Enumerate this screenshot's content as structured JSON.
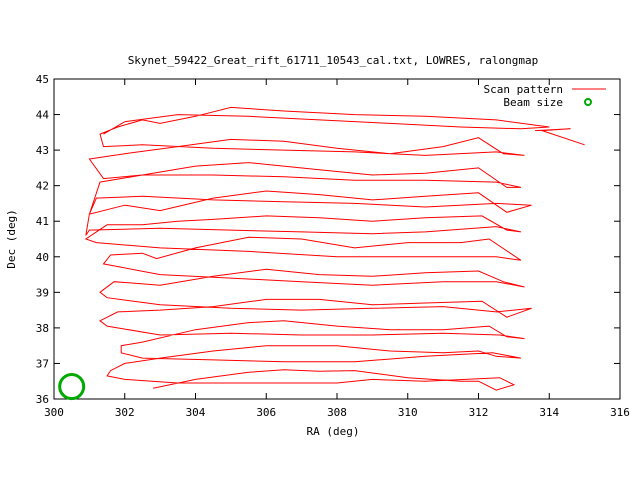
{
  "chart_data": {
    "type": "line",
    "title": "Skynet_59422_Great_rift_61711_10543_cal.txt, LOWRES, ralongmap",
    "xlabel": "RA (deg)",
    "ylabel": "Dec (deg)",
    "xlim": [
      300,
      316
    ],
    "ylim": [
      36,
      45
    ],
    "xticks": [
      "300",
      "302",
      "304",
      "306",
      "308",
      "310",
      "312",
      "314",
      "316"
    ],
    "yticks": [
      "36",
      "37",
      "38",
      "39",
      "40",
      "41",
      "42",
      "43",
      "44",
      "45"
    ],
    "legend_position": "top-right",
    "series": [
      {
        "name": "Scan pattern",
        "color": "#ff0000",
        "points": [
          [
            302.8,
            36.3
          ],
          [
            304.0,
            36.55
          ],
          [
            305.5,
            36.75
          ],
          [
            306.5,
            36.82
          ],
          [
            307.5,
            36.78
          ],
          [
            308.5,
            36.8
          ],
          [
            310.0,
            36.6
          ],
          [
            311.5,
            36.5
          ],
          [
            312.0,
            36.5
          ],
          [
            312.5,
            36.25
          ],
          [
            313.0,
            36.4
          ],
          [
            312.6,
            36.6
          ],
          [
            310.5,
            36.5
          ],
          [
            309.0,
            36.55
          ],
          [
            308.0,
            36.45
          ],
          [
            307.0,
            36.45
          ],
          [
            305.0,
            36.45
          ],
          [
            303.5,
            36.45
          ],
          [
            302.0,
            36.55
          ],
          [
            301.5,
            36.65
          ],
          [
            301.6,
            36.8
          ],
          [
            302.0,
            37.0
          ],
          [
            303.0,
            37.15
          ],
          [
            304.5,
            37.35
          ],
          [
            306.0,
            37.5
          ],
          [
            308.0,
            37.5
          ],
          [
            309.5,
            37.35
          ],
          [
            311.0,
            37.3
          ],
          [
            312.0,
            37.35
          ],
          [
            312.5,
            37.2
          ],
          [
            313.2,
            37.15
          ],
          [
            312.4,
            37.3
          ],
          [
            310.5,
            37.2
          ],
          [
            308.5,
            37.05
          ],
          [
            306.5,
            37.05
          ],
          [
            304.5,
            37.1
          ],
          [
            302.5,
            37.15
          ],
          [
            301.9,
            37.3
          ],
          [
            301.9,
            37.5
          ],
          [
            302.5,
            37.6
          ],
          [
            304.0,
            37.95
          ],
          [
            305.5,
            38.15
          ],
          [
            306.5,
            38.2
          ],
          [
            308.0,
            38.05
          ],
          [
            309.5,
            37.95
          ],
          [
            311.0,
            37.95
          ],
          [
            312.3,
            38.05
          ],
          [
            312.8,
            37.75
          ],
          [
            313.3,
            37.7
          ],
          [
            312.6,
            37.8
          ],
          [
            311.0,
            37.85
          ],
          [
            309.0,
            37.8
          ],
          [
            307.0,
            37.8
          ],
          [
            305.0,
            37.85
          ],
          [
            303.0,
            37.8
          ],
          [
            301.5,
            38.05
          ],
          [
            301.3,
            38.2
          ],
          [
            301.8,
            38.45
          ],
          [
            303.0,
            38.5
          ],
          [
            304.5,
            38.6
          ],
          [
            306.0,
            38.8
          ],
          [
            307.5,
            38.8
          ],
          [
            309.0,
            38.65
          ],
          [
            310.5,
            38.7
          ],
          [
            312.1,
            38.75
          ],
          [
            312.8,
            38.3
          ],
          [
            313.5,
            38.55
          ],
          [
            312.5,
            38.45
          ],
          [
            311.0,
            38.6
          ],
          [
            309.0,
            38.55
          ],
          [
            307.0,
            38.5
          ],
          [
            305.0,
            38.55
          ],
          [
            303.0,
            38.65
          ],
          [
            301.5,
            38.85
          ],
          [
            301.3,
            39.0
          ],
          [
            301.7,
            39.3
          ],
          [
            303.0,
            39.2
          ],
          [
            304.5,
            39.45
          ],
          [
            306.0,
            39.65
          ],
          [
            307.5,
            39.5
          ],
          [
            309.0,
            39.45
          ],
          [
            310.5,
            39.55
          ],
          [
            312.0,
            39.6
          ],
          [
            312.7,
            39.3
          ],
          [
            313.3,
            39.15
          ],
          [
            312.5,
            39.3
          ],
          [
            311.0,
            39.3
          ],
          [
            309.0,
            39.2
          ],
          [
            307.0,
            39.3
          ],
          [
            305.0,
            39.4
          ],
          [
            303.0,
            39.5
          ],
          [
            301.4,
            39.8
          ],
          [
            301.6,
            40.05
          ],
          [
            302.5,
            40.1
          ],
          [
            302.9,
            39.95
          ],
          [
            304.0,
            40.25
          ],
          [
            305.5,
            40.55
          ],
          [
            307.0,
            40.5
          ],
          [
            308.5,
            40.25
          ],
          [
            310.0,
            40.4
          ],
          [
            311.5,
            40.4
          ],
          [
            312.3,
            40.5
          ],
          [
            313.2,
            39.9
          ],
          [
            312.5,
            40.0
          ],
          [
            310.0,
            40.0
          ],
          [
            308.0,
            40.0
          ],
          [
            305.5,
            40.15
          ],
          [
            303.0,
            40.25
          ],
          [
            301.2,
            40.4
          ],
          [
            300.9,
            40.5
          ],
          [
            301.5,
            40.9
          ],
          [
            302.5,
            40.9
          ],
          [
            303.5,
            41.0
          ],
          [
            304.5,
            41.05
          ],
          [
            306.0,
            41.15
          ],
          [
            307.5,
            41.1
          ],
          [
            309.0,
            41.0
          ],
          [
            310.5,
            41.1
          ],
          [
            312.1,
            41.15
          ],
          [
            312.8,
            40.75
          ],
          [
            313.2,
            40.7
          ],
          [
            312.5,
            40.85
          ],
          [
            310.5,
            40.7
          ],
          [
            309.0,
            40.65
          ],
          [
            307.0,
            40.7
          ],
          [
            305.0,
            40.75
          ],
          [
            303.0,
            40.8
          ],
          [
            301.0,
            40.75
          ],
          [
            300.9,
            40.6
          ],
          [
            301.0,
            41.2
          ],
          [
            302.0,
            41.45
          ],
          [
            303.0,
            41.3
          ],
          [
            304.5,
            41.65
          ],
          [
            306.0,
            41.85
          ],
          [
            307.5,
            41.75
          ],
          [
            309.0,
            41.6
          ],
          [
            310.5,
            41.7
          ],
          [
            312.0,
            41.8
          ],
          [
            312.8,
            41.25
          ],
          [
            313.5,
            41.45
          ],
          [
            312.5,
            41.5
          ],
          [
            310.5,
            41.4
          ],
          [
            308.5,
            41.5
          ],
          [
            306.5,
            41.55
          ],
          [
            304.5,
            41.6
          ],
          [
            302.5,
            41.7
          ],
          [
            301.2,
            41.65
          ],
          [
            301.0,
            41.2
          ],
          [
            301.3,
            42.1
          ],
          [
            302.5,
            42.3
          ],
          [
            304.0,
            42.55
          ],
          [
            305.5,
            42.65
          ],
          [
            307.5,
            42.45
          ],
          [
            309.0,
            42.3
          ],
          [
            310.5,
            42.35
          ],
          [
            312.0,
            42.5
          ],
          [
            312.8,
            41.95
          ],
          [
            313.2,
            41.95
          ],
          [
            312.5,
            42.1
          ],
          [
            310.5,
            42.15
          ],
          [
            308.5,
            42.15
          ],
          [
            306.5,
            42.25
          ],
          [
            304.5,
            42.3
          ],
          [
            302.5,
            42.3
          ],
          [
            301.4,
            42.2
          ],
          [
            301.0,
            42.75
          ],
          [
            302.0,
            42.9
          ],
          [
            303.5,
            43.1
          ],
          [
            305.0,
            43.3
          ],
          [
            306.5,
            43.25
          ],
          [
            308.0,
            43.05
          ],
          [
            309.5,
            42.9
          ],
          [
            311.0,
            43.1
          ],
          [
            312.0,
            43.35
          ],
          [
            312.7,
            42.9
          ],
          [
            313.3,
            42.85
          ],
          [
            312.5,
            42.95
          ],
          [
            310.5,
            42.85
          ],
          [
            308.5,
            42.95
          ],
          [
            306.5,
            43.0
          ],
          [
            304.5,
            43.05
          ],
          [
            302.5,
            43.15
          ],
          [
            301.4,
            43.1
          ],
          [
            301.3,
            43.45
          ],
          [
            301.8,
            43.65
          ],
          [
            302.5,
            43.85
          ],
          [
            303.0,
            43.75
          ],
          [
            304.0,
            43.95
          ],
          [
            305.0,
            44.2
          ],
          [
            306.5,
            44.1
          ],
          [
            308.5,
            44.0
          ],
          [
            310.5,
            43.95
          ],
          [
            312.5,
            43.85
          ],
          [
            314.0,
            43.65
          ],
          [
            313.2,
            43.6
          ],
          [
            311.5,
            43.65
          ],
          [
            309.5,
            43.75
          ],
          [
            307.5,
            43.85
          ],
          [
            305.5,
            43.95
          ],
          [
            303.5,
            44.0
          ],
          [
            302.0,
            43.8
          ],
          [
            301.4,
            43.45
          ]
        ]
      },
      {
        "name": "Scan pattern",
        "color": "#ff0000",
        "points": [
          [
            313.6,
            43.55
          ],
          [
            314.6,
            43.6
          ],
          [
            313.8,
            43.55
          ],
          [
            315.0,
            43.15
          ]
        ]
      },
      {
        "name": "Beam size",
        "color": "#00aa00",
        "circle": {
          "x": 300.5,
          "y": 36.35,
          "r": 0.34
        }
      }
    ]
  }
}
